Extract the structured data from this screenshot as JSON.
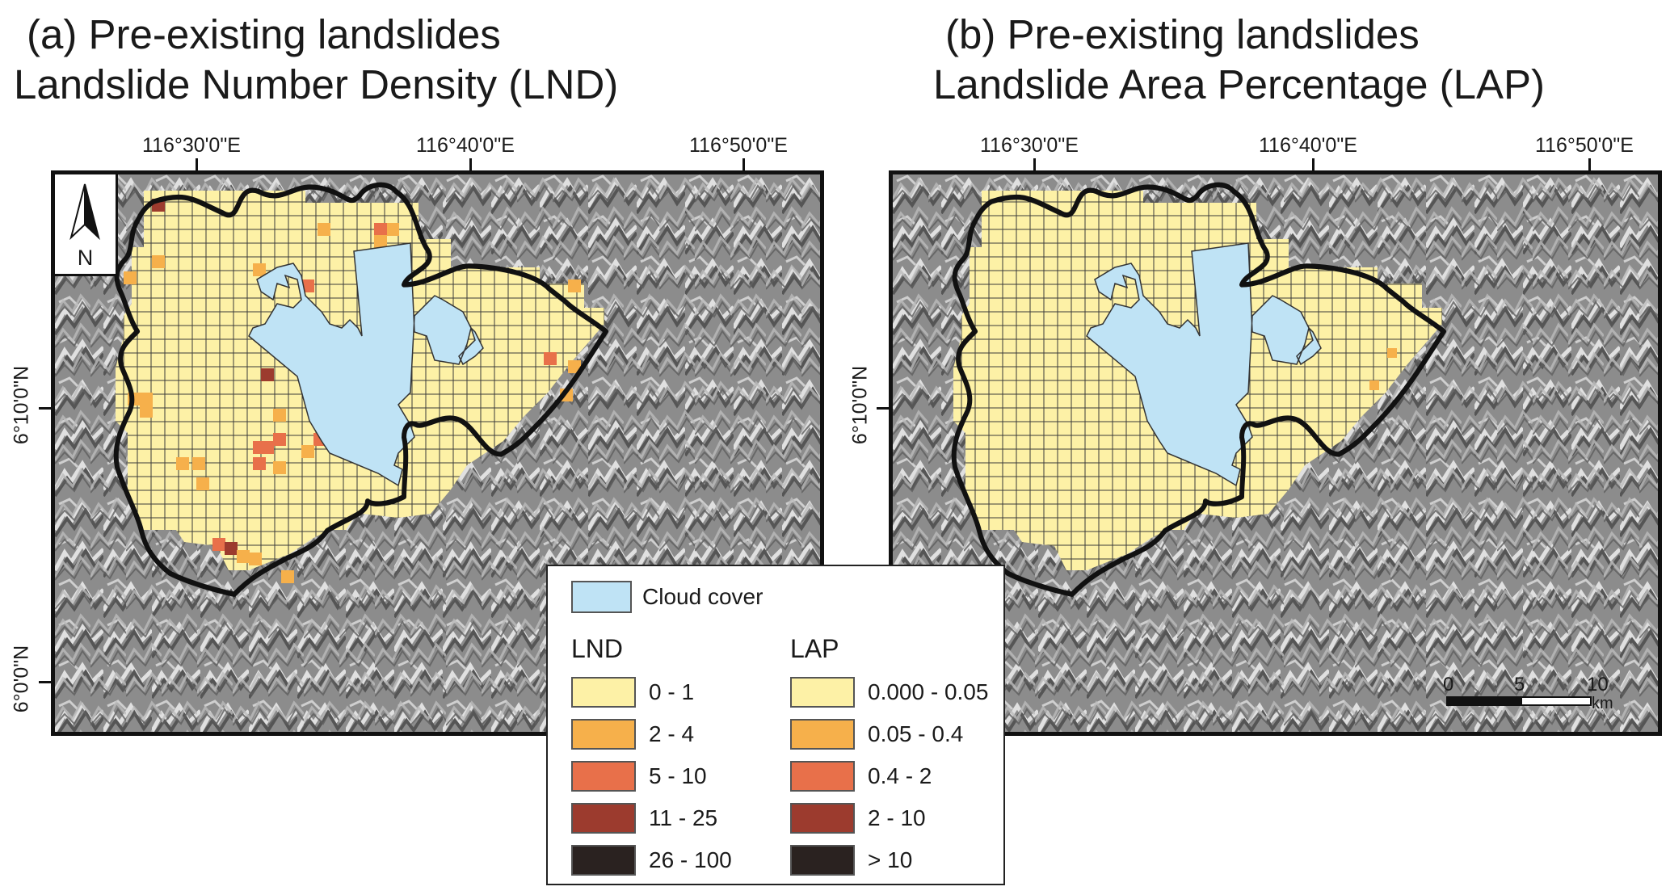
{
  "panel_a": {
    "title_line1": "(a) Pre-existing landslides",
    "title_line2": "Landslide Number Density (LND)"
  },
  "panel_b": {
    "title_line1": "(b) Pre-existing landslides",
    "title_line2": "Landslide Area Percentage (LAP)"
  },
  "longitude_labels": [
    "116°30'0\"E",
    "116°40'0\"E",
    "116°50'0\"E"
  ],
  "latitude_labels": [
    "6°10'0\"N",
    "6°0'0\"N"
  ],
  "north_arrow": {
    "label": "N",
    "icon": "north-arrow-icon"
  },
  "legend": {
    "cloud_cover_label": "Cloud cover",
    "lnd_heading": "LND",
    "lap_heading": "LAP",
    "lnd_classes": [
      "0 - 1",
      "2 - 4",
      "5 - 10",
      "11 - 25",
      "26 - 100"
    ],
    "lap_classes": [
      "0.000 - 0.05",
      "0.05 - 0.4",
      "0.4 - 2",
      "2 - 10",
      "> 10"
    ],
    "class_colors": [
      "#fdf1a6",
      "#f6b04b",
      "#e8704a",
      "#9c3b2e",
      "#2a2220"
    ],
    "cloud_color": "#bfe3f5"
  },
  "scale_bar": {
    "labels": [
      "0",
      "5",
      "10"
    ],
    "unit": "km"
  },
  "colors": {
    "hillshade_dark": "#777777",
    "hillshade_light": "#d6d6d6",
    "boundary": "#111111",
    "grid_line": "#3a3a3a"
  }
}
